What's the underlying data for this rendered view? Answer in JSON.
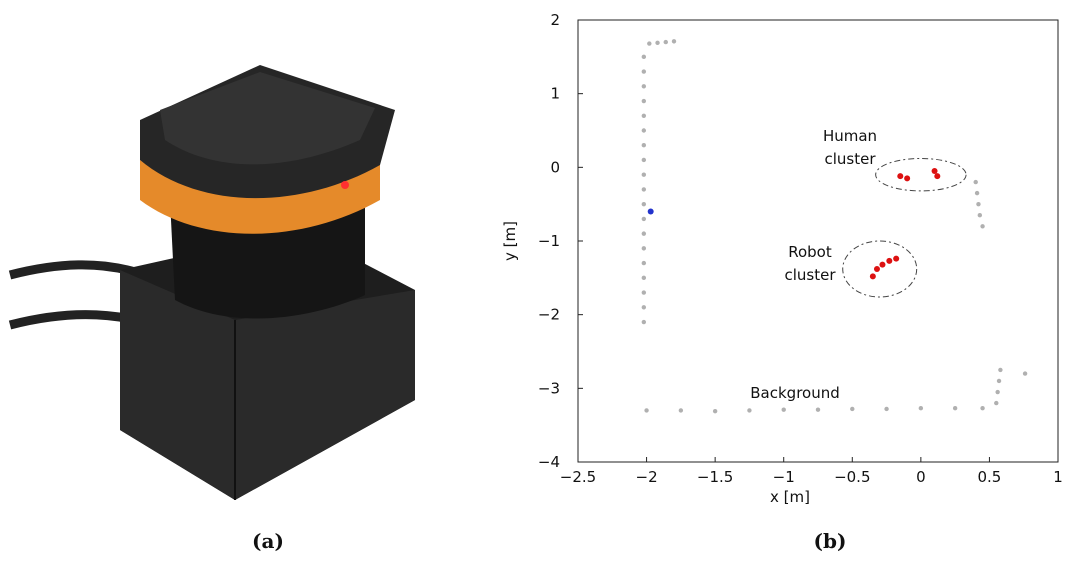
{
  "figure": {
    "captions": [
      "(a)",
      "(b)"
    ]
  },
  "chart_data": {
    "type": "scatter",
    "xlabel": "x [m]",
    "ylabel": "y [m]",
    "xlim": [
      -2.5,
      1
    ],
    "ylim": [
      -4,
      2
    ],
    "xticks": [
      {
        "value": -2.5,
        "label": "−2.5"
      },
      {
        "value": -2,
        "label": "−2"
      },
      {
        "value": -1.5,
        "label": "−1.5"
      },
      {
        "value": -1,
        "label": "−1"
      },
      {
        "value": -0.5,
        "label": "−0.5"
      },
      0,
      0.5,
      1
    ],
    "yticks": [
      {
        "value": -4,
        "label": "−4"
      },
      {
        "value": -3,
        "label": "−3"
      },
      {
        "value": -2,
        "label": "−2"
      },
      {
        "value": -1,
        "label": "−1"
      },
      0,
      1,
      2
    ],
    "annotations": [
      {
        "lines": [
          "Human",
          "cluster"
        ]
      },
      {
        "lines": [
          "Robot",
          "cluster"
        ]
      },
      {
        "lines": [
          "Background"
        ]
      }
    ],
    "series": [
      {
        "color": "#b0b0b0",
        "x": [
          -2.02,
          -2.02,
          -2.02,
          -2.02,
          -2.02,
          -2.02,
          -2.02,
          -2.02,
          -2.02,
          -2.02,
          -2.02,
          -2.02,
          -2.02,
          -2.02,
          -2.02,
          -2.02,
          -2.02,
          -2.02,
          -2.02,
          -1.98,
          -1.92,
          -1.86,
          -1.8,
          0.4,
          0.41,
          0.42,
          0.43,
          0.45,
          -2,
          -1.75,
          -1.5,
          -1.25,
          -1,
          -0.75,
          -0.5,
          -0.25,
          0,
          0.25,
          0.45,
          0.55,
          0.56,
          0.57,
          0.58,
          0.76
        ],
        "y": [
          1.5,
          1.3,
          1.1,
          0.9,
          0.7,
          0.5,
          0.3,
          0.1,
          -0.1,
          -0.3,
          -0.5,
          -0.7,
          -0.9,
          -1.1,
          -1.3,
          -1.5,
          -1.7,
          -1.9,
          -2.1,
          1.68,
          1.69,
          1.7,
          1.71,
          -0.2,
          -0.35,
          -0.5,
          -0.65,
          -0.8,
          -3.3,
          -3.3,
          -3.31,
          -3.3,
          -3.29,
          -3.29,
          -3.28,
          -3.28,
          -3.27,
          -3.27,
          -3.27,
          -3.2,
          -3.05,
          -2.9,
          -2.75,
          -2.8
        ]
      },
      {
        "color": "#dd1111",
        "x": [
          -0.15,
          -0.1,
          0.1,
          0.12,
          -0.35,
          -0.32,
          -0.28,
          -0.23,
          -0.18
        ],
        "y": [
          -0.12,
          -0.15,
          -0.05,
          -0.12,
          -1.48,
          -1.38,
          -1.32,
          -1.27,
          -1.24
        ]
      },
      {
        "color": "#2233cc",
        "x": [
          -1.97
        ],
        "y": [
          -0.6
        ]
      }
    ]
  }
}
